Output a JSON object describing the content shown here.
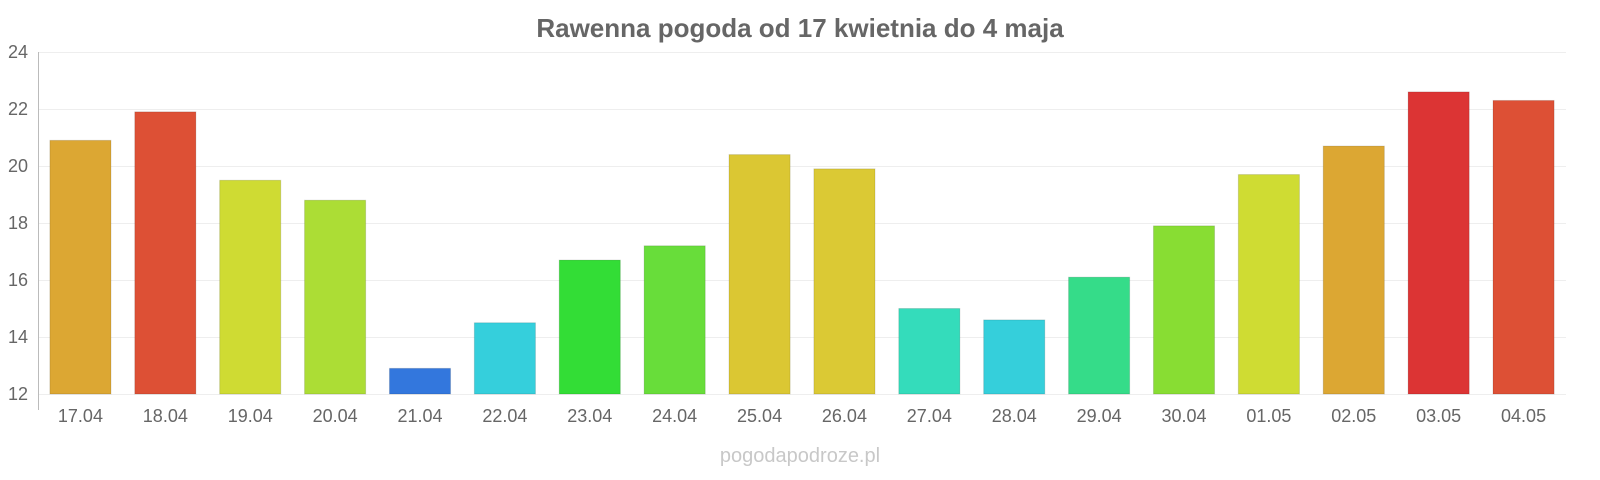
{
  "chart_data": {
    "type": "bar",
    "title": "Rawenna pogoda od 17 kwietnia do 4 maja",
    "xlabel": "",
    "ylabel": "",
    "categories": [
      "17.04",
      "18.04",
      "19.04",
      "20.04",
      "21.04",
      "22.04",
      "23.04",
      "24.04",
      "25.04",
      "26.04",
      "27.04",
      "28.04",
      "29.04",
      "30.04",
      "01.05",
      "02.05",
      "03.05",
      "04.05"
    ],
    "values": [
      20.9,
      21.9,
      19.5,
      18.8,
      12.9,
      14.5,
      16.7,
      17.2,
      20.4,
      19.9,
      15.0,
      14.6,
      16.1,
      17.9,
      19.7,
      20.7,
      22.6,
      22.3
    ],
    "colors": [
      "#dca733",
      "#dd5035",
      "#cfdb33",
      "#acdd35",
      "#3377dd",
      "#35cfdc",
      "#33dd36",
      "#68dd3a",
      "#dbc733",
      "#dbc934",
      "#34dcbb",
      "#35cfdb",
      "#35dc89",
      "#88dd33",
      "#cfdc33",
      "#dca733",
      "#dc3434",
      "#dd5035"
    ],
    "ylim": [
      12,
      24
    ],
    "yticks": [
      12,
      14,
      16,
      18,
      20,
      22,
      24
    ],
    "grid": true,
    "legend": "none"
  },
  "watermark": "pogodapodroze.pl"
}
